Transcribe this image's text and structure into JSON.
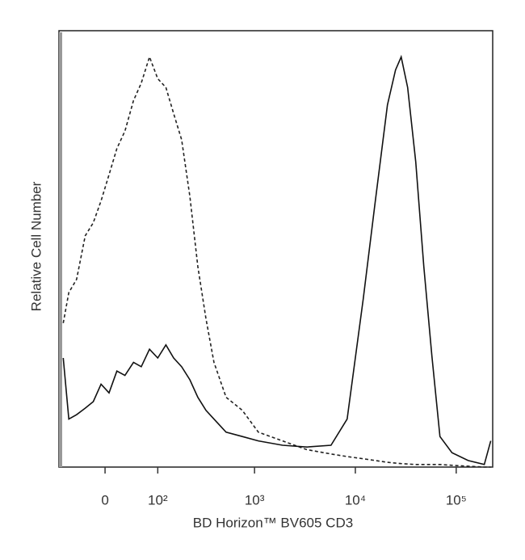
{
  "chart_data": {
    "type": "line",
    "xlabel": "BD Horizon™ BV605 CD3",
    "ylabel": "Relative Cell Number",
    "xscale": "biexponential",
    "xlim": [
      -83,
      230000
    ],
    "ylim": [
      0,
      100
    ],
    "xticks": [
      0,
      {
        "value": 100,
        "label": "10²"
      },
      {
        "value": 1000,
        "label": "10³"
      },
      {
        "value": 10000,
        "label": "10⁴"
      },
      {
        "value": 100000,
        "label": "10⁵"
      }
    ],
    "x": [
      -73,
      -61,
      -46,
      -31,
      -18,
      -6,
      6,
      18,
      31,
      46,
      61,
      79,
      100,
      124,
      151,
      184,
      224,
      270,
      327,
      394,
      521,
      756,
      1093,
      1900,
      3300,
      5735,
      8290,
      11980,
      15790,
      20820,
      25030,
      28480,
      33000,
      39670,
      47700,
      57360,
      68970,
      90870,
      131340,
      189900,
      220000
    ],
    "series": [
      {
        "color": "#222222",
        "dash": "4,3",
        "values": [
          33,
          40,
          43,
          53,
          56,
          61,
          67,
          73,
          77,
          84,
          88,
          94,
          89,
          87,
          81,
          75,
          62,
          46,
          34,
          24,
          16,
          13,
          8,
          6,
          4,
          3,
          2.4,
          1.9,
          1.5,
          1.1,
          0.9,
          0.8,
          0.7,
          0.6,
          0.6,
          0.6,
          0.6,
          0.4,
          0.2,
          0,
          0
        ]
      },
      {
        "color": "#111111",
        "dash": "none",
        "values": [
          25,
          11,
          12,
          13.5,
          15,
          19,
          17,
          22,
          21,
          24,
          23,
          27,
          25,
          28,
          25,
          23,
          20,
          16,
          13,
          11,
          8,
          7,
          6,
          5,
          4.6,
          5,
          11,
          38.5,
          61,
          83,
          91,
          94,
          87,
          70,
          46,
          25.5,
          7,
          3.3,
          1.5,
          0.6,
          6
        ]
      }
    ]
  }
}
